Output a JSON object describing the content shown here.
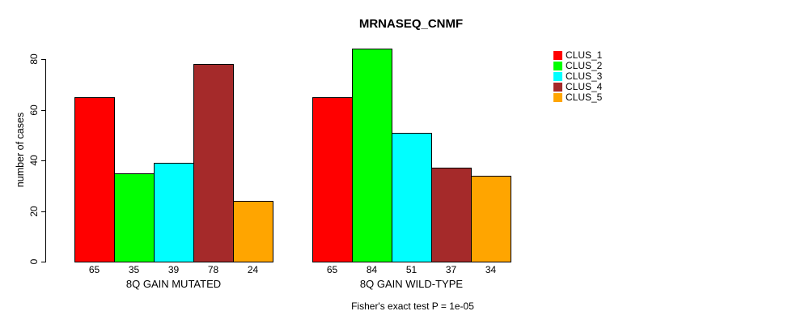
{
  "chart_data": {
    "type": "bar",
    "title": "MRNASEQ_CNMF",
    "ylabel": "number of cases",
    "ylim": [
      0,
      80
    ],
    "yticks": [
      0,
      20,
      40,
      60,
      80
    ],
    "grid": false,
    "legend_position": "right",
    "bar_value_labels_shown": true,
    "categories": [
      "8Q GAIN MUTATED",
      "8Q GAIN WILD-TYPE"
    ],
    "series": [
      {
        "name": "CLUS_1",
        "color": "#FF0000",
        "values": [
          65,
          65
        ]
      },
      {
        "name": "CLUS_2",
        "color": "#00FF00",
        "values": [
          35,
          84
        ]
      },
      {
        "name": "CLUS_3",
        "color": "#00FFFF",
        "values": [
          39,
          51
        ]
      },
      {
        "name": "CLUS_4",
        "color": "#A52A2A",
        "values": [
          78,
          37
        ]
      },
      {
        "name": "CLUS_5",
        "color": "#FFA500",
        "values": [
          24,
          34
        ]
      }
    ],
    "footnote": "Fisher's exact test P = 1e-05"
  }
}
